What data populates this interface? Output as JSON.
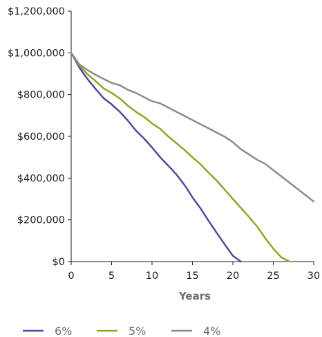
{
  "chart_data": {
    "type": "line",
    "title": "",
    "xlabel": "Years",
    "ylabel": "",
    "xlim": [
      0,
      30
    ],
    "ylim": [
      0,
      1200000
    ],
    "xticks": [
      0,
      5,
      10,
      15,
      20,
      25,
      30
    ],
    "xtick_labels": [
      "0",
      "5",
      "10",
      "15",
      "20",
      "25",
      "30"
    ],
    "yticks": [
      0,
      200000,
      400000,
      600000,
      800000,
      1000000,
      1200000
    ],
    "ytick_labels": [
      "$0",
      "$200,000",
      "$400,000",
      "$600,000",
      "$800,000",
      "$1,000,000",
      "$1,200,000"
    ],
    "grid": false,
    "legend_position": "bottom",
    "series": [
      {
        "name": "6%",
        "color": "#55479a",
        "x": [
          0,
          1,
          2,
          3,
          4,
          5,
          6,
          7,
          8,
          9,
          10,
          11,
          12,
          13,
          14,
          15,
          16,
          17,
          18,
          19,
          20,
          21
        ],
        "y": [
          1000000,
          930000,
          875000,
          828000,
          783000,
          753000,
          718000,
          676000,
          628000,
          590000,
          547000,
          500000,
          460000,
          418000,
          368000,
          308000,
          255000,
          195000,
          138000,
          82000,
          28000,
          0
        ]
      },
      {
        "name": "5%",
        "color": "#8ea52a",
        "x": [
          0,
          1,
          2,
          3,
          4,
          5,
          6,
          7,
          8,
          9,
          10,
          11,
          12,
          13,
          14,
          15,
          16,
          17,
          18,
          19,
          20,
          21,
          22,
          23,
          24,
          25,
          26,
          27
        ],
        "y": [
          1000000,
          940000,
          898000,
          865000,
          830000,
          808000,
          782000,
          747000,
          718000,
          693000,
          662000,
          636000,
          600000,
          568000,
          535000,
          500000,
          466000,
          426000,
          388000,
          344000,
          300000,
          257000,
          213000,
          168000,
          112000,
          62000,
          20000,
          0
        ]
      },
      {
        "name": "4%",
        "color": "#8a8b8d",
        "x": [
          0,
          1,
          2,
          3,
          4,
          5,
          6,
          7,
          8,
          9,
          10,
          11,
          12,
          13,
          14,
          15,
          16,
          17,
          18,
          19,
          20,
          21,
          22,
          23,
          24,
          25,
          26,
          27,
          28,
          29,
          30
        ],
        "y": [
          1000000,
          945000,
          918000,
          895000,
          875000,
          856000,
          845000,
          823000,
          808000,
          788000,
          768000,
          758000,
          738000,
          718000,
          698000,
          678000,
          658000,
          638000,
          618000,
          598000,
          572000,
          538000,
          513000,
          488000,
          468000,
          438000,
          408000,
          378000,
          348000,
          318000,
          288000
        ]
      }
    ]
  }
}
